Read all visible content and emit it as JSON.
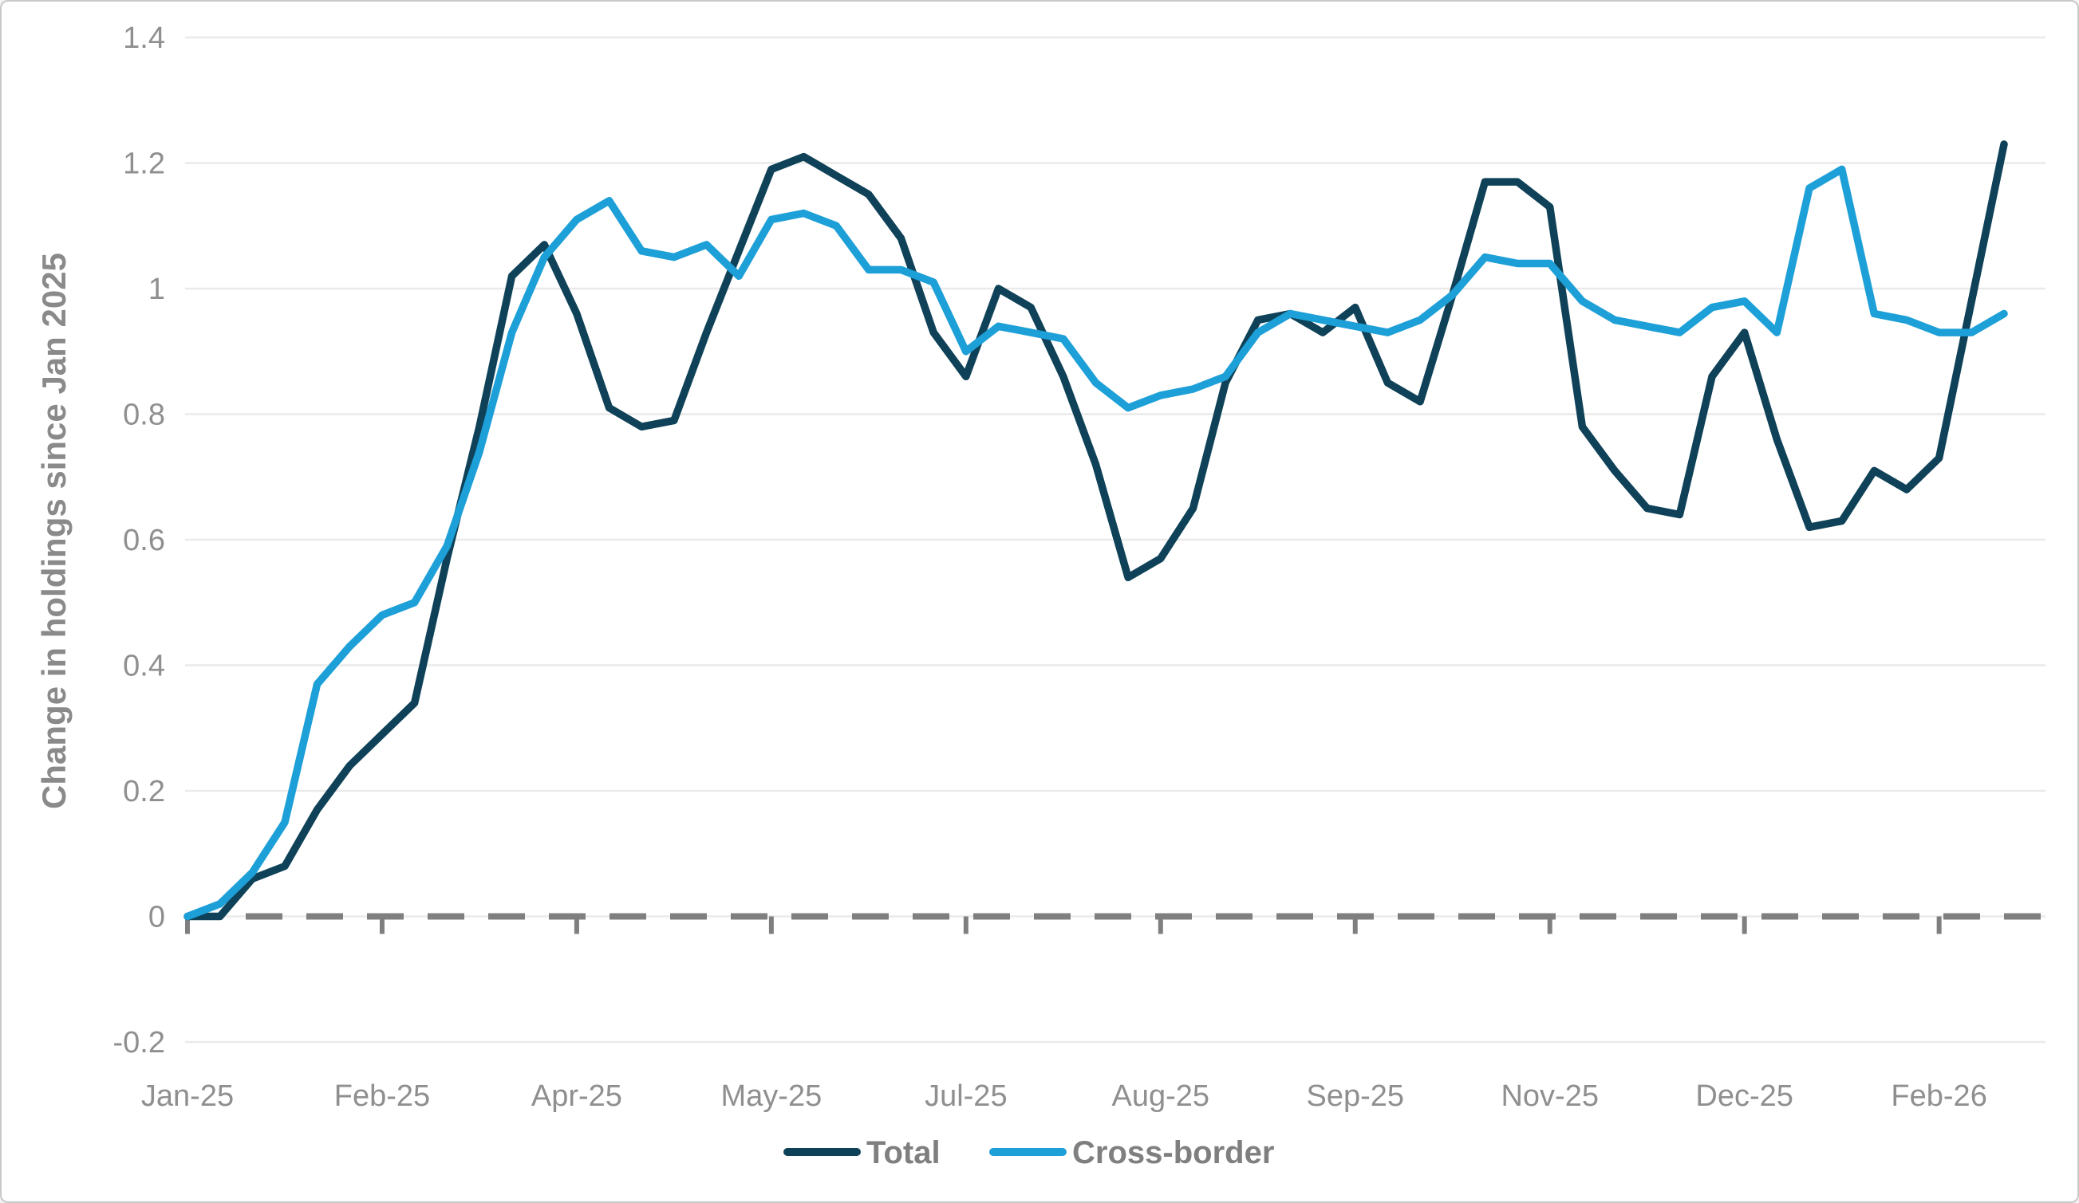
{
  "figure": {
    "background": "#ffffff",
    "border_color": "#c9c9c9",
    "gridline_color": "#eaeaea",
    "zero_line_color": "#7f7f7f",
    "tick_text_color": "#8f8f8f"
  },
  "chart_data": {
    "type": "line",
    "title": "",
    "xlabel": "",
    "ylabel": "Change in holdings since Jan 2025",
    "ylim": [
      -0.2,
      1.4
    ],
    "grid": "horizontal",
    "legend_position": "bottom-center",
    "zero_line": {
      "style": "dashed",
      "value": 0
    },
    "ytick_values": [
      1.4,
      1.2,
      1.0,
      0.8,
      0.6,
      0.4,
      0.2,
      0.0,
      -0.2
    ],
    "ytick_labels": [
      "1.4",
      "1.2",
      "1",
      "0.8",
      "0.6",
      "0.4",
      "0.2",
      "0",
      "-0.2"
    ],
    "x_unit": "week",
    "n_points": 57,
    "x_tick_weeks": [
      0,
      6,
      12,
      18,
      24,
      30,
      36,
      42,
      48,
      54
    ],
    "x_tick_labels": [
      "Jan-25",
      "Feb-25",
      "Apr-25",
      "May-25",
      "Jul-25",
      "Aug-25",
      "Sep-25",
      "Nov-25",
      "Dec-25",
      "Feb-26"
    ],
    "series": [
      {
        "name": "Total",
        "color": "#0f4258",
        "values": [
          0.0,
          0.0,
          0.06,
          0.08,
          0.17,
          0.24,
          0.29,
          0.34,
          0.57,
          0.78,
          1.02,
          1.07,
          0.96,
          0.81,
          0.78,
          0.79,
          0.93,
          1.06,
          1.19,
          1.21,
          1.18,
          1.15,
          1.08,
          0.93,
          0.86,
          1.0,
          0.97,
          0.86,
          0.72,
          0.54,
          0.57,
          0.65,
          0.85,
          0.95,
          0.96,
          0.93,
          0.97,
          0.85,
          0.82,
          0.99,
          1.17,
          1.17,
          1.13,
          0.78,
          0.71,
          0.65,
          0.64,
          0.86,
          0.93,
          0.76,
          0.62,
          0.63,
          0.71,
          0.68,
          0.73,
          0.98,
          1.23
        ]
      },
      {
        "name": "Cross-border",
        "color": "#1d9fd8",
        "values": [
          0.0,
          0.02,
          0.07,
          0.15,
          0.37,
          0.43,
          0.48,
          0.5,
          0.59,
          0.74,
          0.93,
          1.05,
          1.11,
          1.14,
          1.06,
          1.05,
          1.07,
          1.02,
          1.11,
          1.12,
          1.1,
          1.03,
          1.03,
          1.01,
          0.9,
          0.94,
          0.93,
          0.92,
          0.85,
          0.81,
          0.83,
          0.84,
          0.86,
          0.93,
          0.96,
          0.95,
          0.94,
          0.93,
          0.95,
          0.99,
          1.05,
          1.04,
          1.04,
          0.98,
          0.95,
          0.94,
          0.93,
          0.97,
          0.98,
          0.93,
          1.16,
          1.19,
          0.96,
          0.95,
          0.93,
          0.93,
          0.96
        ]
      }
    ]
  }
}
